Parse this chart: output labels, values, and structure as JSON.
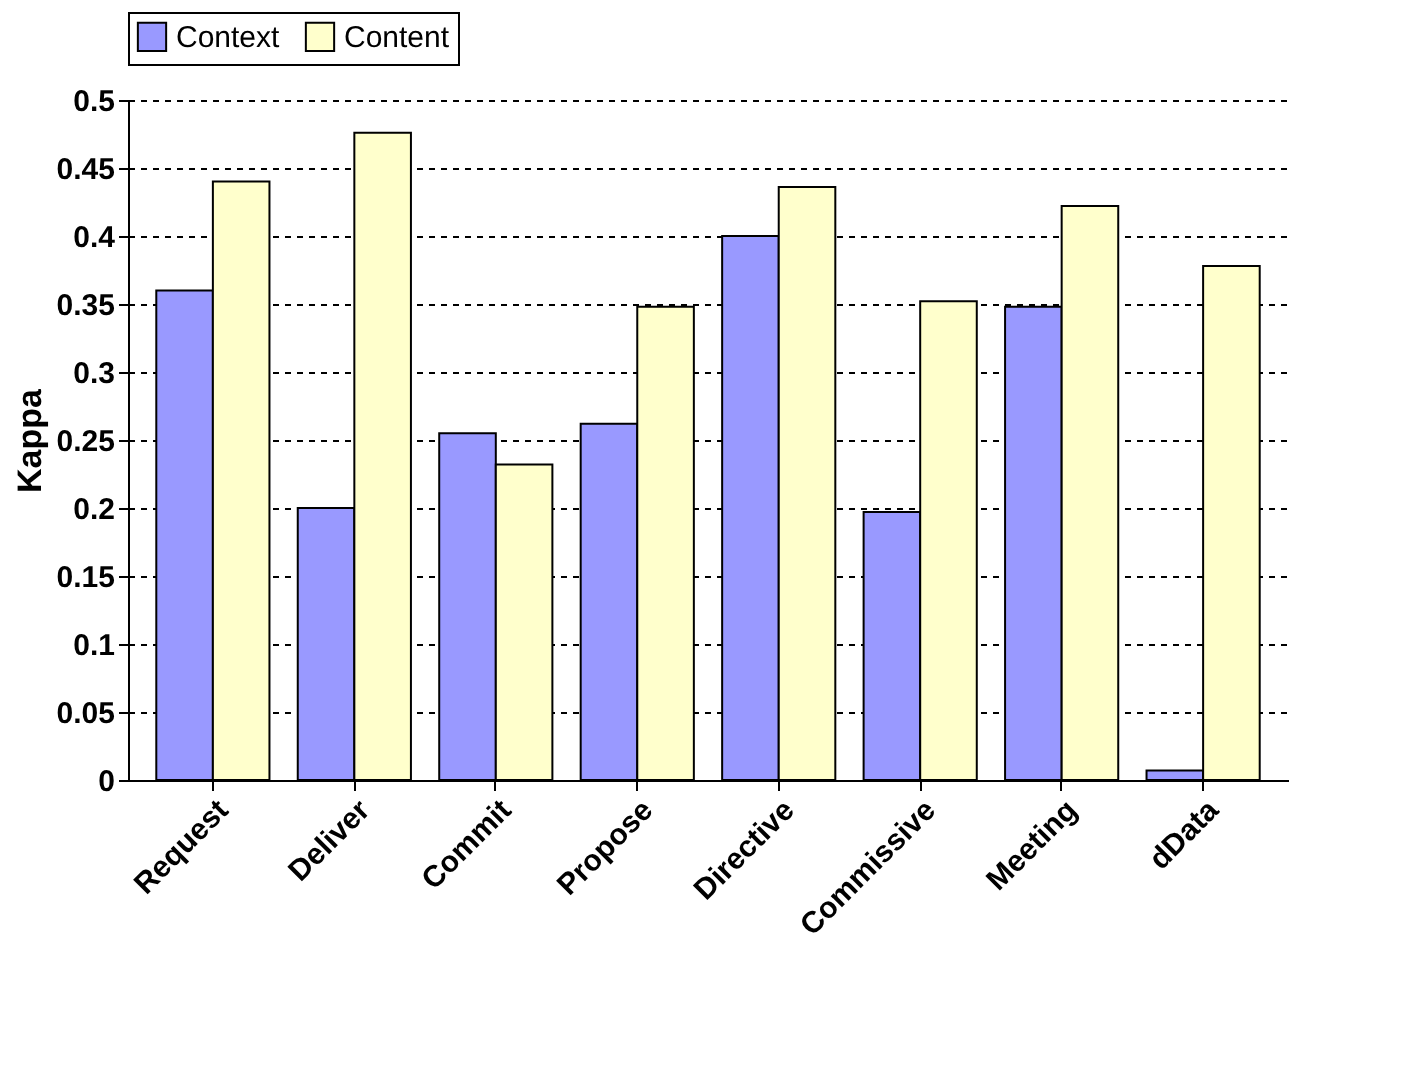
{
  "chart_data": {
    "type": "bar",
    "ylabel": "Kappa",
    "categories": [
      "Request",
      "Deliver",
      "Commit",
      "Propose",
      "Directive",
      "Commissive",
      "Meeting",
      "dData"
    ],
    "series": [
      {
        "name": "Context",
        "color": "#9999ff",
        "values": [
          0.36,
          0.2,
          0.255,
          0.262,
          0.4,
          0.197,
          0.348,
          0.007
        ]
      },
      {
        "name": "Content",
        "color": "#ffffcc",
        "values": [
          0.44,
          0.476,
          0.232,
          0.348,
          0.436,
          0.352,
          0.422,
          0.378
        ]
      }
    ],
    "ylim": [
      0,
      0.5
    ],
    "yticks": [
      0,
      0.05,
      0.1,
      0.15,
      0.2,
      0.25,
      0.3,
      0.35,
      0.4,
      0.45,
      0.5
    ],
    "grid": "y",
    "legend": "top"
  }
}
